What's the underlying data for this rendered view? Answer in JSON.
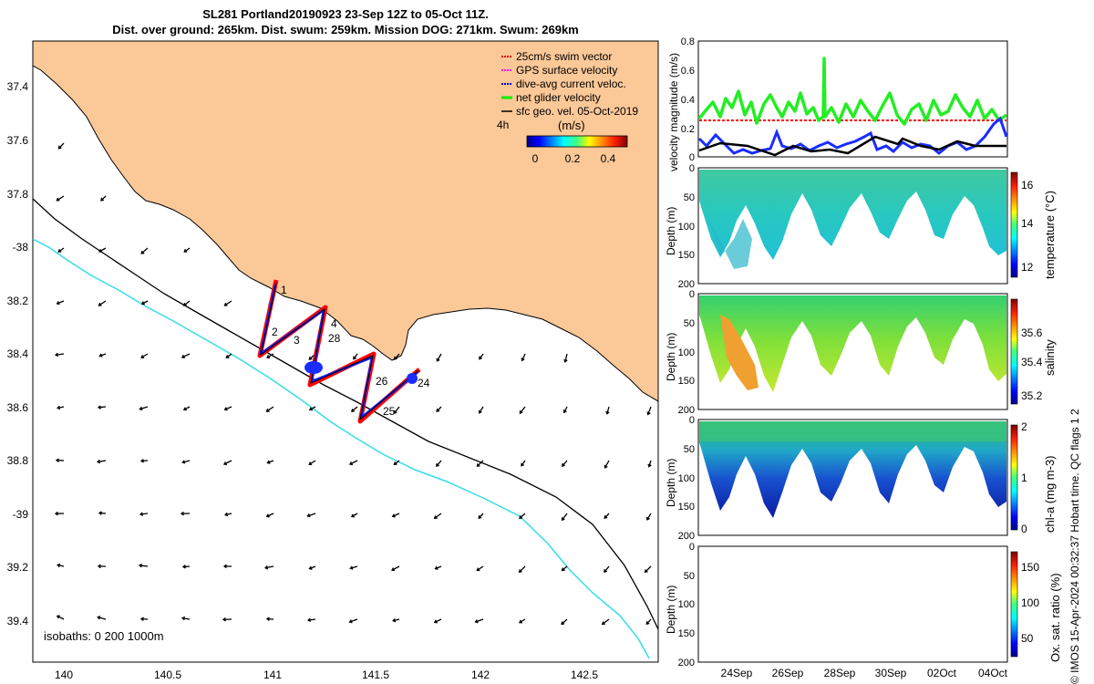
{
  "title": {
    "line1": "SL281 Portland20190923 23-Sep 12Z to 05-Oct 11Z.",
    "line2": "Dist. over ground: 265km. Dist. swum: 259km. Mission DOG: 271km. Swum: 269km"
  },
  "map": {
    "lat_ticks": [
      "37.4",
      "37.6",
      "37.8",
      "-38",
      "38.2",
      "38.4",
      "38.6",
      "38.8",
      "-39",
      "39.2",
      "39.4"
    ],
    "lon_ticks": [
      "140",
      "140.5",
      "141",
      "141.5",
      "142",
      "142.5"
    ],
    "isobaths_label": "isobaths: 0   200  1000m",
    "track_labels": [
      "1",
      "2",
      "3",
      "4",
      "28",
      "26",
      "25",
      "24"
    ],
    "colors": {
      "land": "#fbc898",
      "track": "#ff0000",
      "bathy_200": "#000000",
      "bathy_1000": "#33dde8"
    }
  },
  "legend": {
    "items": [
      {
        "label": "25cm/s swim vector",
        "color": "#e00000"
      },
      {
        "label": "GPS surface velocity",
        "color": "#ff00ff"
      },
      {
        "label": "dive-avg current veloc.",
        "color": "#0000dd"
      },
      {
        "label": "net glider velocity",
        "color": "#00ee00"
      },
      {
        "label": "sfc geo. vel. 05-Oct-2019",
        "color": "#000000"
      }
    ],
    "interval": "4h",
    "colorbar_unit": "(m/s)",
    "colorbar_ticks": [
      "0",
      "0.2",
      "0.4"
    ]
  },
  "panels": {
    "velocity": {
      "ylabel": "velocity magnitude (m/s)",
      "yticks": [
        "0.8",
        "0.6",
        "0.4",
        "0.2",
        "0"
      ]
    },
    "temperature": {
      "ylabel": "Depth (m)",
      "yticks": [
        "0",
        "50",
        "100",
        "150",
        "200"
      ],
      "cb_label": "temperature (°C)",
      "cb_ticks": [
        "16",
        "14",
        "12"
      ]
    },
    "salinity": {
      "ylabel": "Depth (m)",
      "yticks": [
        "0",
        "50",
        "100",
        "150",
        "200"
      ],
      "cb_label": "salinity",
      "cb_ticks": [
        "35.6",
        "35.4",
        "35.2"
      ]
    },
    "chla": {
      "ylabel": "Depth (m)",
      "yticks": [
        "0",
        "50",
        "100",
        "150",
        "200"
      ],
      "cb_label": "chl-a (mg m-3)",
      "cb_ticks": [
        "2",
        "1",
        "0"
      ]
    },
    "oxygen": {
      "ylabel": "Depth (m)",
      "yticks": [
        "0",
        "50",
        "100",
        "150",
        "200"
      ],
      "cb_label": "Ox. sat. ratio (%)",
      "cb_ticks": [
        "150",
        "100",
        "50"
      ]
    },
    "xticks": [
      "24Sep",
      "26Sep",
      "28Sep",
      "30Sep",
      "02Oct",
      "04Oct"
    ]
  },
  "credit": "© IMOS 15-Apr-2024 00:32:37 Hobart time. QC flags 1  2"
}
